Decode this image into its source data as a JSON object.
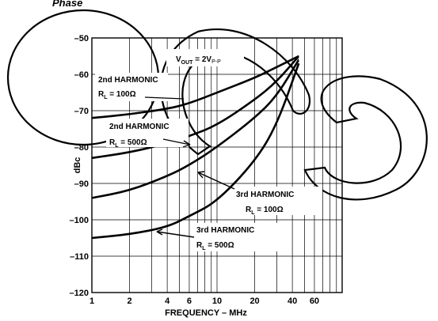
{
  "chart_data": {
    "type": "line",
    "title_fragment": "Phase",
    "xlabel": "FREQUENCY – MHz",
    "ylabel": "dBc",
    "x_scale": "log",
    "xlim": [
      1,
      100
    ],
    "ylim": [
      -120,
      -50
    ],
    "x_ticks": [
      1,
      2,
      4,
      6,
      10,
      20,
      40,
      60
    ],
    "x_tick_labels": [
      "1",
      "2",
      "4",
      "6",
      "10",
      "20",
      "40",
      "60"
    ],
    "y_ticks": [
      -50,
      -60,
      -70,
      -80,
      -90,
      -100,
      -110,
      -120
    ],
    "y_tick_labels": [
      "–50",
      "–60",
      "–70",
      "–80",
      "–90",
      "–100",
      "–110",
      "–120"
    ],
    "grid": true,
    "condition_label": "V",
    "condition_sub1": "OUT",
    "condition_mid": " = 2V",
    "condition_sub2": "P-P",
    "series": [
      {
        "name": "2nd HARMONIC",
        "sub": "L",
        "load": " = 100Ω",
        "x": [
          1,
          2,
          4,
          6,
          10,
          20,
          30,
          45
        ],
        "y": [
          -72,
          -71,
          -69.5,
          -68,
          -65,
          -61,
          -58,
          -55
        ]
      },
      {
        "name": "2nd HARMONIC",
        "sub": "L",
        "load": " = 500Ω",
        "x": [
          1,
          2,
          4,
          6,
          10,
          20,
          30,
          45
        ],
        "y": [
          -83,
          -81.5,
          -79,
          -77,
          -74,
          -67,
          -62,
          -55
        ]
      },
      {
        "name": "3rd HARMONIC",
        "sub": "L",
        "load": " = 100Ω",
        "x": [
          1,
          2,
          4,
          6,
          10,
          20,
          30,
          45
        ],
        "y": [
          -94,
          -92,
          -88,
          -85,
          -80,
          -72,
          -66,
          -56
        ]
      },
      {
        "name": "3rd HARMONIC",
        "sub": "L",
        "load": " = 500Ω",
        "x": [
          1,
          2,
          4,
          6,
          10,
          20,
          30,
          45
        ],
        "y": [
          -105,
          -104,
          -102,
          -99,
          -95,
          -84,
          -74,
          -57
        ]
      }
    ]
  }
}
